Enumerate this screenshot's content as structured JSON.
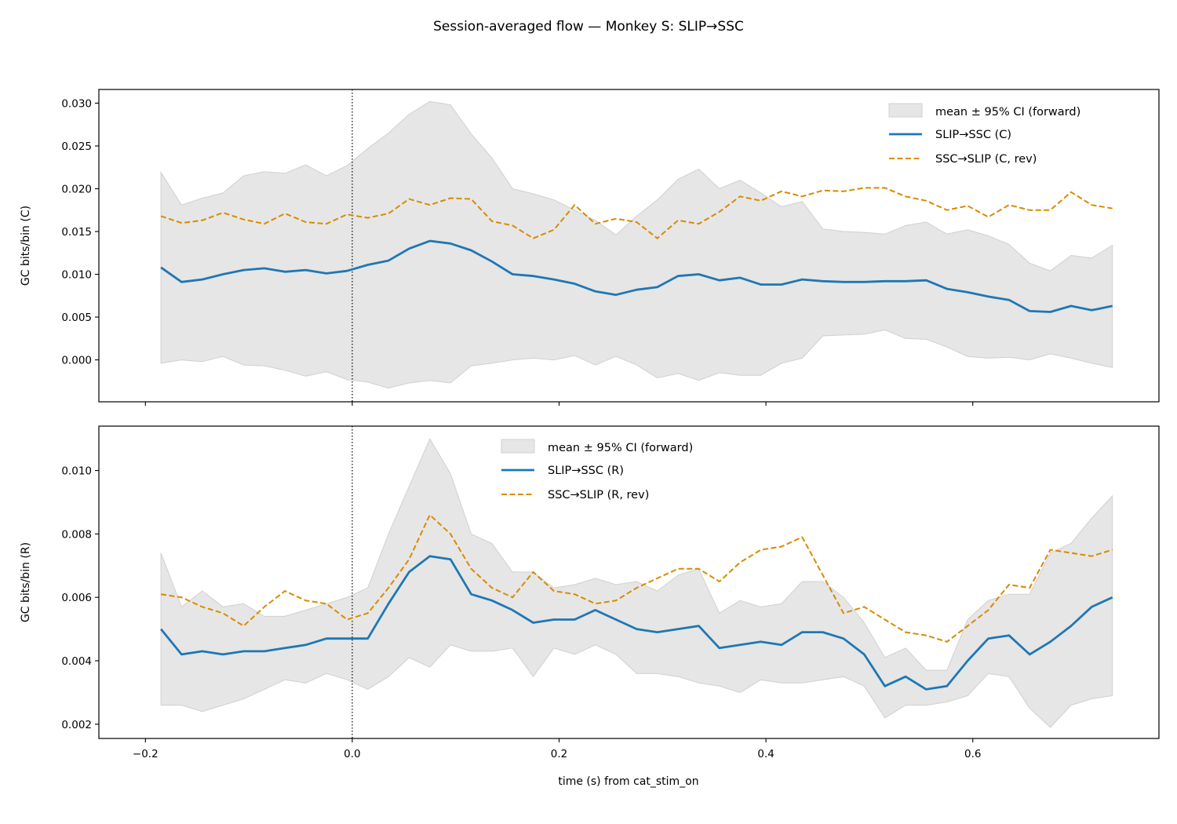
{
  "title": "Session-averaged flow — Monkey S: SLIP→SSC",
  "colors": {
    "forward": "#1f77b4",
    "reverse": "#d98a00",
    "band_fill": "#e6e6e6",
    "band_edge": "#d0d0d0"
  },
  "chart_data": [
    {
      "type": "line",
      "ylabel": "GC bits/bin (C)",
      "xlabel": "",
      "xlim": [
        -0.245,
        0.78
      ],
      "ylim": [
        -0.0049,
        0.0316
      ],
      "xticks": [
        -0.2,
        0.0,
        0.2,
        0.4,
        0.6
      ],
      "xtick_labels": [
        "",
        "",
        "",
        "",
        ""
      ],
      "yticks": [
        0.0,
        0.005,
        0.01,
        0.015,
        0.02,
        0.025,
        0.03
      ],
      "ytick_labels": [
        "0.000",
        "0.005",
        "0.010",
        "0.015",
        "0.020",
        "0.025",
        "0.030"
      ],
      "vline_x": 0.0,
      "legend_position": "upper-right",
      "x": [
        -0.185,
        -0.165,
        -0.145,
        -0.125,
        -0.105,
        -0.085,
        -0.065,
        -0.045,
        -0.025,
        -0.005,
        0.015,
        0.035,
        0.055,
        0.075,
        0.095,
        0.115,
        0.135,
        0.155,
        0.175,
        0.195,
        0.215,
        0.235,
        0.255,
        0.275,
        0.295,
        0.315,
        0.335,
        0.355,
        0.375,
        0.395,
        0.415,
        0.435,
        0.455,
        0.475,
        0.495,
        0.515,
        0.535,
        0.555,
        0.575,
        0.595,
        0.615,
        0.635,
        0.655,
        0.675,
        0.695,
        0.715,
        0.735
      ],
      "band": {
        "name": "mean ± 95% CI (forward)",
        "upper": [
          0.0219,
          0.0181,
          0.0189,
          0.0195,
          0.0215,
          0.022,
          0.0218,
          0.0228,
          0.0215,
          0.0227,
          0.0247,
          0.0265,
          0.0287,
          0.0302,
          0.0298,
          0.0264,
          0.0236,
          0.02,
          0.0194,
          0.0187,
          0.0175,
          0.0163,
          0.0146,
          0.0168,
          0.0187,
          0.0211,
          0.0223,
          0.02,
          0.021,
          0.0195,
          0.0179,
          0.0185,
          0.0153,
          0.015,
          0.0149,
          0.0147,
          0.0157,
          0.0161,
          0.0147,
          0.0152,
          0.0145,
          0.0135,
          0.0113,
          0.0104,
          0.0122,
          0.0119,
          0.0134
        ],
        "lower": [
          -0.0004,
          0.0,
          -0.0002,
          0.0004,
          -0.0006,
          -0.0007,
          -0.0012,
          -0.0019,
          -0.0014,
          -0.0023,
          -0.0026,
          -0.0033,
          -0.0027,
          -0.0024,
          -0.0027,
          -0.0007,
          -0.0004,
          0.0,
          0.0002,
          0.0,
          0.0005,
          -0.0006,
          0.0004,
          -0.0006,
          -0.0021,
          -0.0016,
          -0.0024,
          -0.0015,
          -0.0018,
          -0.0018,
          -0.0004,
          0.0002,
          0.0028,
          0.0029,
          0.003,
          0.0035,
          0.0025,
          0.0024,
          0.0015,
          0.0004,
          0.0002,
          0.0003,
          0.0,
          0.0007,
          0.0002,
          -0.0004,
          -0.0009
        ]
      },
      "series": [
        {
          "name": "SLIP→SSC (C)",
          "style": "solid",
          "values": [
            0.0108,
            0.0091,
            0.0094,
            0.01,
            0.0105,
            0.0107,
            0.0103,
            0.0105,
            0.0101,
            0.0104,
            0.0111,
            0.0116,
            0.013,
            0.0139,
            0.0136,
            0.0128,
            0.0115,
            0.01,
            0.0098,
            0.0094,
            0.0089,
            0.008,
            0.0076,
            0.0082,
            0.0085,
            0.0098,
            0.01,
            0.0093,
            0.0096,
            0.0088,
            0.0088,
            0.0094,
            0.0092,
            0.0091,
            0.0091,
            0.0092,
            0.0092,
            0.0093,
            0.0083,
            0.0079,
            0.0074,
            0.007,
            0.0057,
            0.0056,
            0.0063,
            0.0058,
            0.0063
          ]
        },
        {
          "name": "SSC→SLIP (C, rev)",
          "style": "dashed",
          "values": [
            0.0168,
            0.016,
            0.0163,
            0.0172,
            0.0164,
            0.0159,
            0.0171,
            0.0161,
            0.0159,
            0.017,
            0.0166,
            0.0171,
            0.0188,
            0.0181,
            0.0189,
            0.0188,
            0.0162,
            0.0157,
            0.0142,
            0.0152,
            0.0181,
            0.0159,
            0.0165,
            0.0161,
            0.0142,
            0.0163,
            0.0159,
            0.0173,
            0.0191,
            0.0186,
            0.0197,
            0.0191,
            0.0198,
            0.0197,
            0.0201,
            0.0201,
            0.0191,
            0.0186,
            0.0175,
            0.018,
            0.0167,
            0.0181,
            0.0175,
            0.0175,
            0.0196,
            0.0181,
            0.0177
          ]
        }
      ]
    },
    {
      "type": "line",
      "ylabel": "GC bits/bin (R)",
      "xlabel": "time (s) from cat_stim_on",
      "xlim": [
        -0.245,
        0.78
      ],
      "ylim": [
        0.00155,
        0.0114
      ],
      "xticks": [
        -0.2,
        0.0,
        0.2,
        0.4,
        0.6
      ],
      "xtick_labels": [
        "−0.2",
        "0.0",
        "0.2",
        "0.4",
        "0.6"
      ],
      "yticks": [
        0.002,
        0.004,
        0.006,
        0.008,
        0.01
      ],
      "ytick_labels": [
        "0.002",
        "0.004",
        "0.006",
        "0.008",
        "0.010"
      ],
      "vline_x": 0.0,
      "legend_position": "upper-center",
      "x": [
        -0.185,
        -0.165,
        -0.145,
        -0.125,
        -0.105,
        -0.085,
        -0.065,
        -0.045,
        -0.025,
        -0.005,
        0.015,
        0.035,
        0.055,
        0.075,
        0.095,
        0.115,
        0.135,
        0.155,
        0.175,
        0.195,
        0.215,
        0.235,
        0.255,
        0.275,
        0.295,
        0.315,
        0.335,
        0.355,
        0.375,
        0.395,
        0.415,
        0.435,
        0.455,
        0.475,
        0.495,
        0.515,
        0.535,
        0.555,
        0.575,
        0.595,
        0.615,
        0.635,
        0.655,
        0.675,
        0.695,
        0.715,
        0.735
      ],
      "band": {
        "name": "mean ± 95% CI (forward)",
        "upper": [
          0.0074,
          0.0057,
          0.0062,
          0.0057,
          0.0058,
          0.0054,
          0.0054,
          0.0056,
          0.0058,
          0.006,
          0.0063,
          0.008,
          0.0095,
          0.011,
          0.0099,
          0.008,
          0.0077,
          0.0068,
          0.0068,
          0.0063,
          0.0064,
          0.0066,
          0.0064,
          0.0065,
          0.0062,
          0.0067,
          0.0069,
          0.0055,
          0.0059,
          0.0057,
          0.0058,
          0.0065,
          0.0065,
          0.006,
          0.0052,
          0.0041,
          0.0044,
          0.0037,
          0.0037,
          0.0053,
          0.0059,
          0.0061,
          0.0061,
          0.0074,
          0.0077,
          0.0085,
          0.0092
        ],
        "lower": [
          0.0026,
          0.0026,
          0.0024,
          0.0026,
          0.0028,
          0.0031,
          0.0034,
          0.0033,
          0.0036,
          0.0034,
          0.0031,
          0.0035,
          0.0041,
          0.0038,
          0.0045,
          0.0043,
          0.0043,
          0.0044,
          0.0035,
          0.0044,
          0.0042,
          0.0045,
          0.0042,
          0.0036,
          0.0036,
          0.0035,
          0.0033,
          0.0032,
          0.003,
          0.0034,
          0.0033,
          0.0033,
          0.0034,
          0.0035,
          0.0032,
          0.0022,
          0.0026,
          0.0026,
          0.0027,
          0.0029,
          0.0036,
          0.0035,
          0.0025,
          0.0019,
          0.0026,
          0.0028,
          0.0029
        ]
      },
      "series": [
        {
          "name": "SLIP→SSC (R)",
          "style": "solid",
          "values": [
            0.005,
            0.0042,
            0.0043,
            0.0042,
            0.0043,
            0.0043,
            0.0044,
            0.0045,
            0.0047,
            0.0047,
            0.0047,
            0.0058,
            0.0068,
            0.0073,
            0.0072,
            0.0061,
            0.0059,
            0.0056,
            0.0052,
            0.0053,
            0.0053,
            0.0056,
            0.0053,
            0.005,
            0.0049,
            0.005,
            0.0051,
            0.0044,
            0.0045,
            0.0046,
            0.0045,
            0.0049,
            0.0049,
            0.0047,
            0.0042,
            0.0032,
            0.0035,
            0.0031,
            0.0032,
            0.004,
            0.0047,
            0.0048,
            0.0042,
            0.0046,
            0.0051,
            0.0057,
            0.006
          ]
        },
        {
          "name": "SSC→SLIP (R, rev)",
          "style": "dashed",
          "values": [
            0.0061,
            0.006,
            0.0057,
            0.0055,
            0.0051,
            0.0057,
            0.0062,
            0.0059,
            0.0058,
            0.0053,
            0.0055,
            0.0063,
            0.0072,
            0.0086,
            0.008,
            0.0069,
            0.0063,
            0.006,
            0.0068,
            0.0062,
            0.0061,
            0.0058,
            0.0059,
            0.0063,
            0.0066,
            0.0069,
            0.0069,
            0.0065,
            0.0071,
            0.0075,
            0.0076,
            0.0079,
            0.0067,
            0.0055,
            0.0057,
            0.0053,
            0.0049,
            0.0048,
            0.0046,
            0.0051,
            0.0056,
            0.0064,
            0.0063,
            0.0075,
            0.0074,
            0.0073,
            0.0075
          ]
        }
      ]
    }
  ]
}
